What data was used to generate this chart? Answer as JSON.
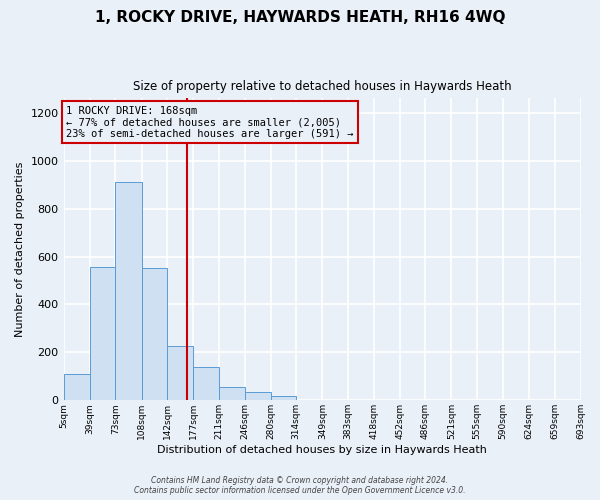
{
  "title": "1, ROCKY DRIVE, HAYWARDS HEATH, RH16 4WQ",
  "subtitle": "Size of property relative to detached houses in Haywards Heath",
  "xlabel": "Distribution of detached houses by size in Haywards Heath",
  "ylabel": "Number of detached properties",
  "bin_edges": [
    5,
    39,
    73,
    108,
    142,
    177,
    211,
    246,
    280,
    314,
    349,
    383,
    418,
    452,
    486,
    521,
    555,
    590,
    624,
    659,
    693
  ],
  "bin_counts": [
    110,
    555,
    910,
    550,
    225,
    140,
    55,
    35,
    18,
    0,
    0,
    0,
    0,
    0,
    0,
    0,
    0,
    0,
    0,
    0
  ],
  "bar_facecolor": "#cfe0f3",
  "bar_edgecolor": "#5b9bd5",
  "vline_x": 168,
  "vline_color": "#cc0000",
  "annotation_box_edgecolor": "#cc0000",
  "annotation_text_line1": "1 ROCKY DRIVE: 168sqm",
  "annotation_text_line2": "← 77% of detached houses are smaller (2,005)",
  "annotation_text_line3": "23% of semi-detached houses are larger (591) →",
  "ylim": [
    0,
    1260
  ],
  "yticks": [
    0,
    200,
    400,
    600,
    800,
    1000,
    1200
  ],
  "tick_labels": [
    "5sqm",
    "39sqm",
    "73sqm",
    "108sqm",
    "142sqm",
    "177sqm",
    "211sqm",
    "246sqm",
    "280sqm",
    "314sqm",
    "349sqm",
    "383sqm",
    "418sqm",
    "452sqm",
    "486sqm",
    "521sqm",
    "555sqm",
    "590sqm",
    "624sqm",
    "659sqm",
    "693sqm"
  ],
  "footer_line1": "Contains HM Land Registry data © Crown copyright and database right 2024.",
  "footer_line2": "Contains public sector information licensed under the Open Government Licence v3.0.",
  "background_color": "#eaf0f8",
  "grid_color": "#ffffff",
  "title_fontsize": 11,
  "subtitle_fontsize": 8.5
}
